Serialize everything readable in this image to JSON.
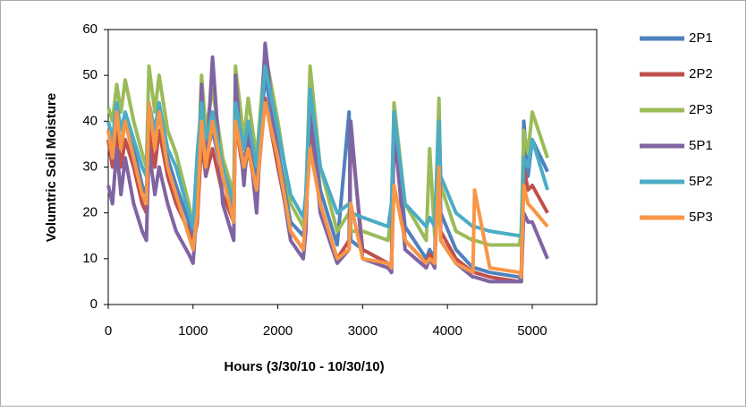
{
  "chart_data": {
    "type": "line",
    "xlabel": "Hours (3/30/10 - 10/30/10)",
    "ylabel": "Volumtric Soil Moisture",
    "x": [
      0,
      50,
      100,
      150,
      200,
      300,
      400,
      450,
      480,
      550,
      600,
      700,
      800,
      950,
      1000,
      1050,
      1100,
      1150,
      1230,
      1350,
      1480,
      1500,
      1600,
      1650,
      1750,
      1850,
      2000,
      2150,
      2300,
      2330,
      2380,
      2500,
      2700,
      2840,
      2860,
      3000,
      3300,
      3340,
      3370,
      3500,
      3750,
      3790,
      3850,
      3900,
      3920,
      4100,
      4300,
      4320,
      4500,
      4850,
      4870,
      4900,
      4950,
      5000,
      5180
    ],
    "xlim": [
      0,
      5760
    ],
    "xticks": [
      0,
      1000,
      2000,
      3000,
      4000,
      5000
    ],
    "ylim": [
      0,
      60
    ],
    "yticks": [
      0,
      10,
      20,
      30,
      40,
      50,
      60
    ],
    "series": [
      {
        "name": "2P1",
        "color": "#4f81bd",
        "values": [
          38,
          34,
          42,
          34,
          40,
          34,
          26,
          24,
          42,
          34,
          42,
          32,
          26,
          18,
          14,
          22,
          42,
          32,
          38,
          28,
          20,
          42,
          30,
          38,
          27,
          50,
          34,
          18,
          15,
          20,
          44,
          25,
          13,
          42,
          14,
          12,
          9,
          7,
          42,
          17,
          10,
          12,
          10,
          42,
          20,
          12,
          8,
          8,
          7,
          6,
          5,
          40,
          28,
          36,
          29
        ]
      },
      {
        "name": "2P2",
        "color": "#c0504d",
        "values": [
          36,
          30,
          38,
          30,
          36,
          30,
          22,
          20,
          38,
          30,
          38,
          28,
          22,
          16,
          13,
          18,
          36,
          28,
          34,
          24,
          18,
          40,
          28,
          34,
          24,
          45,
          30,
          16,
          12,
          18,
          40,
          22,
          10,
          14,
          38,
          12,
          9,
          8,
          38,
          14,
          9,
          11,
          9,
          38,
          16,
          10,
          7,
          7,
          6,
          5,
          5,
          30,
          25,
          26,
          20
        ]
      },
      {
        "name": "2P3",
        "color": "#9bbb59",
        "values": [
          43,
          40,
          48,
          42,
          49,
          40,
          33,
          30,
          52,
          42,
          50,
          38,
          33,
          22,
          17,
          24,
          50,
          38,
          47,
          32,
          24,
          52,
          36,
          45,
          32,
          55,
          40,
          22,
          17,
          22,
          52,
          30,
          16,
          20,
          16,
          16,
          14,
          20,
          44,
          22,
          14,
          34,
          15,
          45,
          26,
          16,
          14,
          14,
          13,
          13,
          16,
          38,
          33,
          42,
          32
        ]
      },
      {
        "name": "5P1",
        "color": "#8064a2",
        "values": [
          26,
          22,
          34,
          24,
          32,
          22,
          16,
          14,
          34,
          24,
          30,
          22,
          16,
          11,
          9,
          22,
          48,
          28,
          54,
          22,
          14,
          50,
          26,
          38,
          20,
          57,
          32,
          14,
          10,
          16,
          44,
          20,
          9,
          12,
          40,
          10,
          8,
          7,
          40,
          12,
          8,
          10,
          8,
          40,
          14,
          9,
          6,
          6,
          5,
          5,
          5,
          20,
          18,
          18,
          10
        ]
      },
      {
        "name": "5P2",
        "color": "#4bacc6",
        "values": [
          40,
          36,
          44,
          38,
          42,
          36,
          30,
          28,
          44,
          38,
          44,
          34,
          30,
          20,
          17,
          33,
          44,
          36,
          42,
          30,
          22,
          44,
          34,
          40,
          30,
          52,
          38,
          24,
          19,
          24,
          47,
          30,
          20,
          22,
          20,
          19,
          17,
          22,
          42,
          22,
          17,
          19,
          17,
          40,
          28,
          20,
          17,
          17,
          16,
          15,
          15,
          32,
          30,
          36,
          25
        ]
      },
      {
        "name": "5P3",
        "color": "#f79646",
        "values": [
          38,
          32,
          42,
          34,
          40,
          32,
          24,
          22,
          44,
          34,
          42,
          30,
          24,
          15,
          12,
          20,
          40,
          30,
          40,
          28,
          18,
          40,
          30,
          34,
          25,
          44,
          32,
          16,
          12,
          20,
          34,
          22,
          10,
          12,
          22,
          10,
          9,
          8,
          26,
          14,
          9,
          10,
          9,
          30,
          14,
          9,
          7,
          25,
          8,
          7,
          6,
          26,
          22,
          21,
          17
        ]
      }
    ]
  }
}
